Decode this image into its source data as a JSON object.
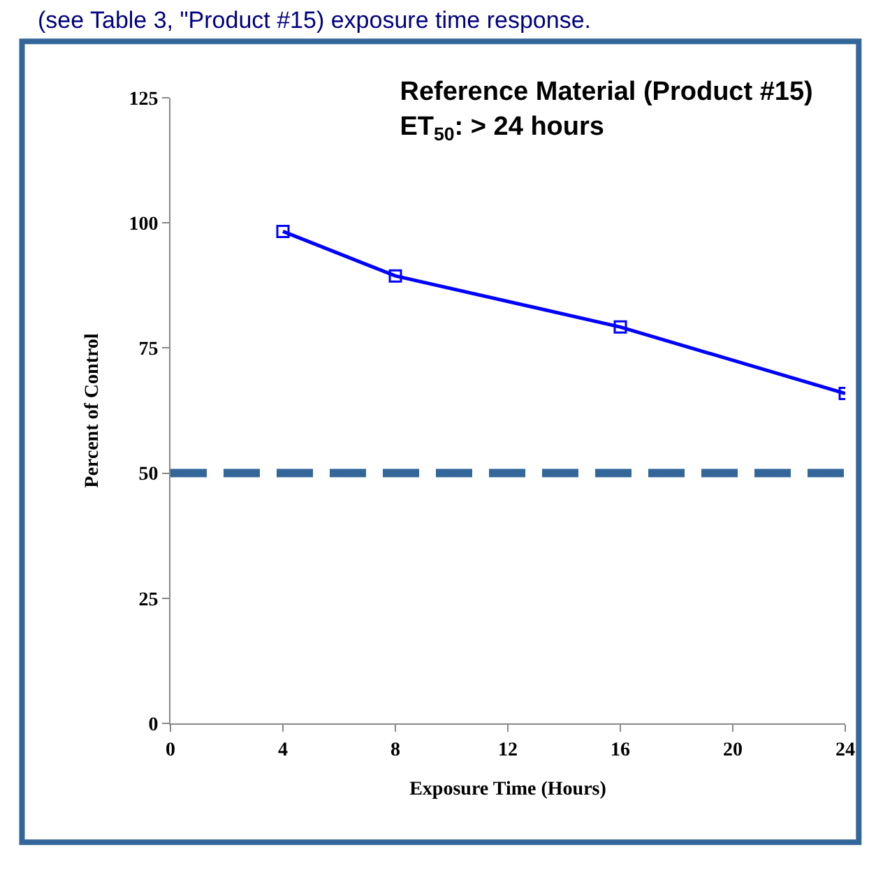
{
  "chart_data": {
    "type": "line",
    "title": "Reference Material (Product #15)\nET$_{50}$: > 24 hours",
    "xlabel": "Exposure Time (Hours)",
    "ylabel": "Percent of Control",
    "annotations": [
      "(see Table 3, \"Product #15) exposure time response."
    ],
    "x": [
      4,
      8,
      16,
      24
    ],
    "series": [
      {
        "color": "#0000ff",
        "values": [
          98.3,
          89.4,
          79.2,
          65.9
        ]
      }
    ],
    "xlim": [
      0,
      24
    ],
    "xticks": [
      0,
      4,
      8,
      12,
      16,
      20,
      24
    ],
    "ylim": [
      0,
      125
    ],
    "yticks": [
      0,
      25,
      50,
      75,
      100,
      125
    ],
    "ref_lines": [
      {
        "axis": "y",
        "value": 50,
        "color": "#336699",
        "line_style": "dashed"
      }
    ],
    "marker": "square",
    "line_style": "solid"
  }
}
